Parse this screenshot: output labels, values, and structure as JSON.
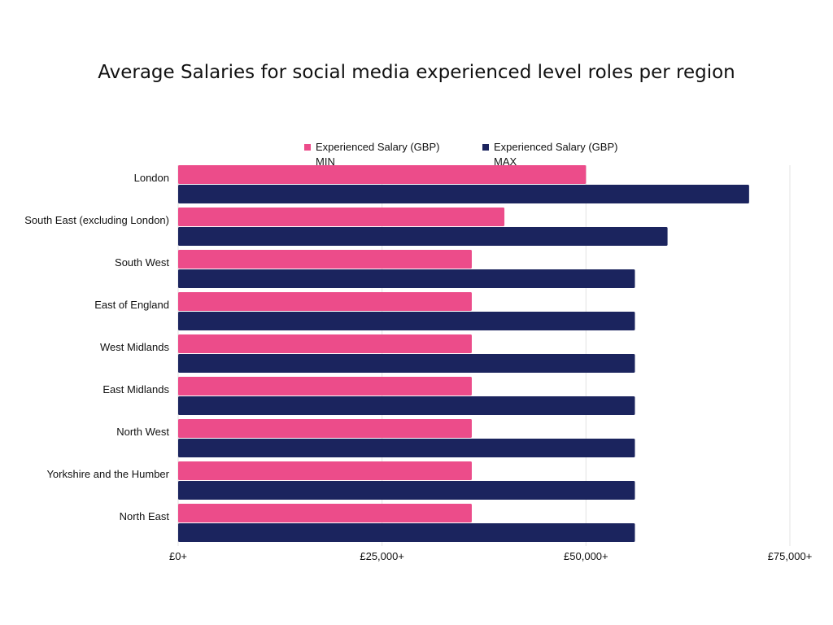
{
  "chart_data": {
    "type": "bar",
    "orientation": "horizontal",
    "title": "Average Salaries for social media experienced level roles per region",
    "xlabel": "",
    "ylabel": "",
    "categories": [
      "London",
      "South East (excluding London)",
      "South West",
      "East of England",
      "West Midlands",
      "East Midlands",
      "North West",
      "Yorkshire and the Humber",
      "North East"
    ],
    "series": [
      {
        "name": "Experienced Salary (GBP) MIN",
        "legend_lines": [
          "Experienced Salary (GBP)",
          "MIN"
        ],
        "color": "#ec4c8a",
        "values": [
          50000,
          40000,
          36000,
          36000,
          36000,
          36000,
          36000,
          36000,
          36000
        ]
      },
      {
        "name": "Experienced Salary (GBP) MAX",
        "legend_lines": [
          "Experienced Salary (GBP)",
          "MAX"
        ],
        "color": "#1b245e",
        "values": [
          70000,
          60000,
          56000,
          56000,
          56000,
          56000,
          56000,
          56000,
          56000
        ]
      }
    ],
    "xlim": [
      0,
      75000
    ],
    "xticks": [
      0,
      25000,
      50000,
      75000
    ],
    "xtick_labels": [
      "£0+",
      "£25,000+",
      "£50,000+",
      "£75,000+"
    ],
    "grid": true,
    "legend_position": "top"
  }
}
